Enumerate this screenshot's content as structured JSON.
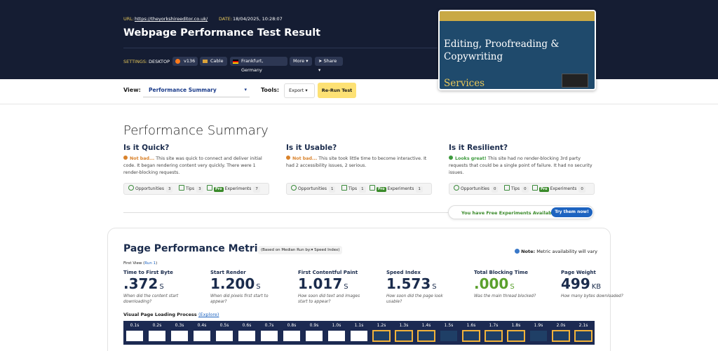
{
  "header": {
    "url_label": "URL:",
    "url": "https://theyorkshireeditor.co.uk/",
    "date_label": "DATE:",
    "date": "18/04/2025, 10:28:07",
    "title": "Webpage Performance Test Result",
    "settings_label": "SETTINGS:",
    "device": "DESKTOP",
    "browser": "v136",
    "connection": "Cable",
    "location": "Frankfurt, Germany",
    "more": "More",
    "share": "Share"
  },
  "preview": {
    "headline": "Editing, Proofreading & Copywriting",
    "subline": "Services"
  },
  "toolbar": {
    "view_label": "View:",
    "view": "Performance Summary",
    "tools_label": "Tools:",
    "export": "Export",
    "rerun": "Re-Run Test"
  },
  "summary": {
    "title": "Performance Summary",
    "pro": "Pro",
    "sections": [
      {
        "heading": "Is it Quick?",
        "verdict": "Not bad...",
        "verdict_color": "#d9822b",
        "text": " This site was quick to connect and deliver initial code. It began rendering content very quickly. There were 1 render-blocking requests.",
        "tabs": [
          {
            "label": "Opportunities",
            "count": 3
          },
          {
            "label": "Tips",
            "count": 3
          },
          {
            "label": "Experiments",
            "count": 7
          }
        ]
      },
      {
        "heading": "Is it Usable?",
        "verdict": "Not bad...",
        "verdict_color": "#d9822b",
        "text": " This site took little time to become interactive. It had 2 accessibility issues, 2 serious.",
        "tabs": [
          {
            "label": "Opportunities",
            "count": 1
          },
          {
            "label": "Tips",
            "count": 1
          },
          {
            "label": "Experiments",
            "count": 1
          }
        ]
      },
      {
        "heading": "Is it Resilient?",
        "verdict": "Looks great!",
        "verdict_color": "#3d9a3d",
        "text": " This site had no render-blocking 3rd party requests that could be a single point of failure. It had no security issues.",
        "tabs": [
          {
            "label": "Opportunities",
            "count": 0
          },
          {
            "label": "Tips",
            "count": 0
          },
          {
            "label": "Experiments",
            "count": 0
          }
        ]
      }
    ]
  },
  "experiments_banner": {
    "text": "You have Free Experiments Available!",
    "button": "Try them now!"
  },
  "metrics": {
    "title": "Page Performance Metrics",
    "based_label": "(Based on Median Run by:",
    "based_value": "Speed Index",
    "based_close": ")",
    "note_label": "Note:",
    "note": "Metric availability will vary",
    "first_view": "First View (",
    "run": "Run 1",
    "first_view_close": ")",
    "items": [
      {
        "label": "Time to First Byte",
        "value": ".372",
        "unit": "S",
        "desc": "When did the content start downloading?",
        "color": "#1a2b4c"
      },
      {
        "label": "Start Render",
        "value": "1.200",
        "unit": "S",
        "desc": "When did pixels first start to appear?",
        "color": "#1a2b4c"
      },
      {
        "label": "First Contentful Paint",
        "value": "1.017",
        "unit": "S",
        "desc": "How soon did text and images start to appear?",
        "color": "#1a2b4c"
      },
      {
        "label": "Speed Index",
        "value": "1.573",
        "unit": "S",
        "desc": "How soon did the page look usable?",
        "color": "#1a2b4c"
      },
      {
        "label": "Total Blocking Time",
        "value": ".000",
        "unit": "S",
        "desc": "Was the main thread blocked?",
        "color": "#5aa02c"
      },
      {
        "label": "Page Weight",
        "value": "499",
        "unit": "KB",
        "desc": "How many bytes downloaded?",
        "color": "#1a2b4c"
      }
    ],
    "loading_title": "Visual Page Loading Process",
    "explore": "(Explore)",
    "frames": [
      {
        "time": "0.1s",
        "changed": false
      },
      {
        "time": "0.2s",
        "changed": false
      },
      {
        "time": "0.3s",
        "changed": false
      },
      {
        "time": "0.4s",
        "changed": false
      },
      {
        "time": "0.5s",
        "changed": false
      },
      {
        "time": "0.6s",
        "changed": false
      },
      {
        "time": "0.7s",
        "changed": false
      },
      {
        "time": "0.8s",
        "changed": false
      },
      {
        "time": "0.9s",
        "changed": false
      },
      {
        "time": "1.0s",
        "changed": false
      },
      {
        "time": "1.1s",
        "changed": false
      },
      {
        "time": "1.2s",
        "changed": true
      },
      {
        "time": "1.3s",
        "changed": true
      },
      {
        "time": "1.4s",
        "changed": true
      },
      {
        "time": "1.5s",
        "changed": false
      },
      {
        "time": "1.6s",
        "changed": true
      },
      {
        "time": "1.7s",
        "changed": true
      },
      {
        "time": "1.8s",
        "changed": true
      },
      {
        "time": "1.9s",
        "changed": false
      },
      {
        "time": "2.0s",
        "changed": true
      },
      {
        "time": "2.1s",
        "changed": true
      }
    ]
  }
}
